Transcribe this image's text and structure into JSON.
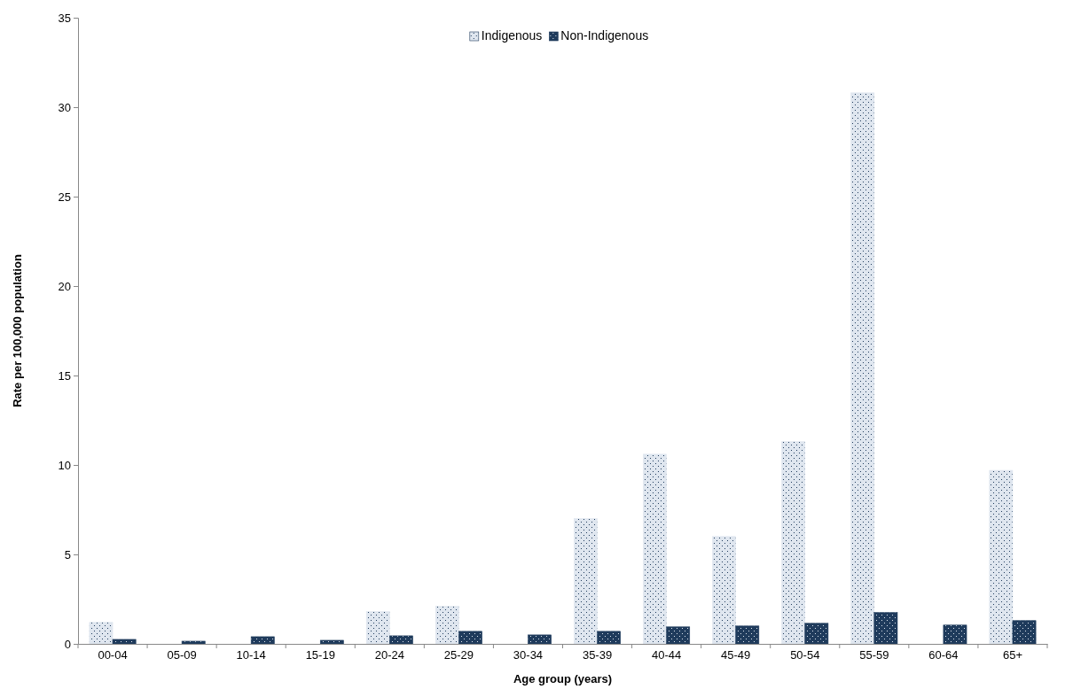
{
  "chart_data": {
    "type": "bar",
    "xlabel": "Age group (years)",
    "ylabel": "Rate per 100,000 population",
    "categories": [
      "00-04",
      "05-09",
      "10-14",
      "15-19",
      "20-24",
      "25-29",
      "30-34",
      "35-39",
      "40-44",
      "45-49",
      "50-54",
      "55-59",
      "60-64",
      "65+"
    ],
    "series": [
      {
        "name": "Indigenous",
        "color": "#dfe6ef",
        "values": [
          1.2,
          0,
          0,
          0,
          1.8,
          2.1,
          0,
          7.0,
          10.6,
          6.0,
          11.3,
          30.8,
          0,
          9.7
        ]
      },
      {
        "name": "Non-Indigenous",
        "color": "#1f3b5c",
        "values": [
          0.25,
          0.15,
          0.4,
          0.2,
          0.45,
          0.7,
          0.5,
          0.7,
          0.95,
          1.0,
          1.15,
          1.75,
          1.05,
          1.3
        ]
      }
    ],
    "ylim": [
      0,
      35
    ],
    "yticks": [
      0,
      5,
      10,
      15,
      20,
      25,
      30,
      35
    ],
    "legend": "top",
    "grid": false
  }
}
